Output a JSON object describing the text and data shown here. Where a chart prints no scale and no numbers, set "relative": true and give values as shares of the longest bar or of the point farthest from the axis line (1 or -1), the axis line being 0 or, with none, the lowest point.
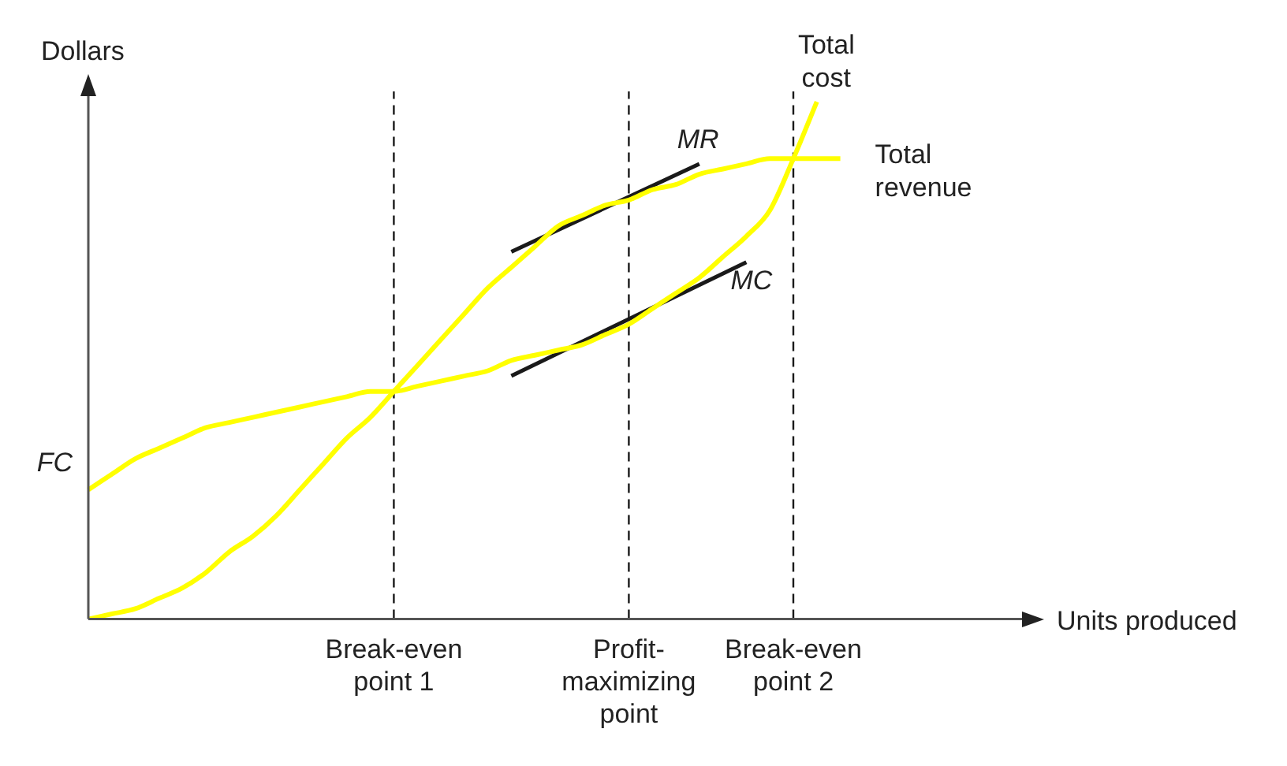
{
  "chart_data": {
    "type": "line",
    "relative": true,
    "xlabel": "Units produced",
    "ylabel": "Dollars",
    "categories": [
      null,
      null,
      null,
      null,
      null,
      null,
      null,
      null,
      null,
      null,
      null,
      null,
      null,
      "Break-even point 1",
      null,
      null,
      null,
      null,
      null,
      null,
      null,
      null,
      null,
      "Profit-maximizing point",
      null,
      null,
      null,
      null,
      null,
      null,
      "Break-even point 2",
      null,
      null,
      null,
      null,
      null,
      null,
      null,
      null,
      null,
      null
    ],
    "series": [
      {
        "name": "Total cost",
        "color": "#ffff00",
        "values": [
          0.25,
          0.28,
          0.31,
          0.33,
          0.35,
          0.37,
          0.38,
          0.39,
          0.4,
          0.41,
          0.42,
          0.43,
          0.44,
          0.44,
          0.45,
          0.46,
          0.47,
          0.48,
          0.5,
          0.51,
          0.52,
          0.53,
          0.55,
          0.57,
          0.6,
          0.63,
          0.66,
          0.7,
          0.74,
          0.79,
          0.89,
          1,
          null,
          null,
          null,
          null,
          null,
          null,
          null,
          null,
          null
        ]
      },
      {
        "name": "Total revenue",
        "color": "#ffff00",
        "values": [
          0,
          0.01,
          0.02,
          0.04,
          0.06,
          0.09,
          0.13,
          0.16,
          0.2,
          0.25,
          0.3,
          0.35,
          0.39,
          0.44,
          0.49,
          0.54,
          0.59,
          0.64,
          0.68,
          0.72,
          0.76,
          0.78,
          0.8,
          0.81,
          0.83,
          0.84,
          0.86,
          0.87,
          0.88,
          0.89,
          0.89,
          0.89,
          0.89,
          null,
          null,
          null,
          null,
          null,
          null,
          null,
          null
        ]
      },
      {
        "name": "MR",
        "color": "#1a1a1a",
        "values": [
          null,
          null,
          null,
          null,
          null,
          null,
          null,
          null,
          null,
          null,
          null,
          null,
          null,
          null,
          null,
          null,
          null,
          null,
          0.71,
          null,
          null,
          null,
          null,
          null,
          null,
          null,
          0.88,
          null,
          null,
          null,
          null,
          null,
          null,
          null,
          null,
          null,
          null,
          null,
          null,
          null,
          null
        ]
      },
      {
        "name": "MC",
        "color": "#1a1a1a",
        "values": [
          null,
          null,
          null,
          null,
          null,
          null,
          null,
          null,
          null,
          null,
          null,
          null,
          null,
          null,
          null,
          null,
          null,
          null,
          0.47,
          null,
          null,
          null,
          null,
          null,
          null,
          null,
          null,
          null,
          0.69,
          null,
          null,
          null,
          null,
          null,
          null,
          null,
          null,
          null,
          null,
          null,
          null
        ]
      }
    ],
    "annotations": [
      "FC"
    ],
    "ref_lines": [
      {
        "axis": "x",
        "value": "Break-even point 1",
        "color": "#1a1a1a",
        "line_style": "dashed"
      },
      {
        "axis": "x",
        "value": "Profit-maximizing point",
        "color": "#1a1a1a",
        "line_style": "dashed"
      },
      {
        "axis": "x",
        "value": "Break-even point 2",
        "color": "#1a1a1a",
        "line_style": "dashed"
      }
    ],
    "grid": false,
    "legend": false,
    "marker": "none",
    "line_style": "solid"
  }
}
